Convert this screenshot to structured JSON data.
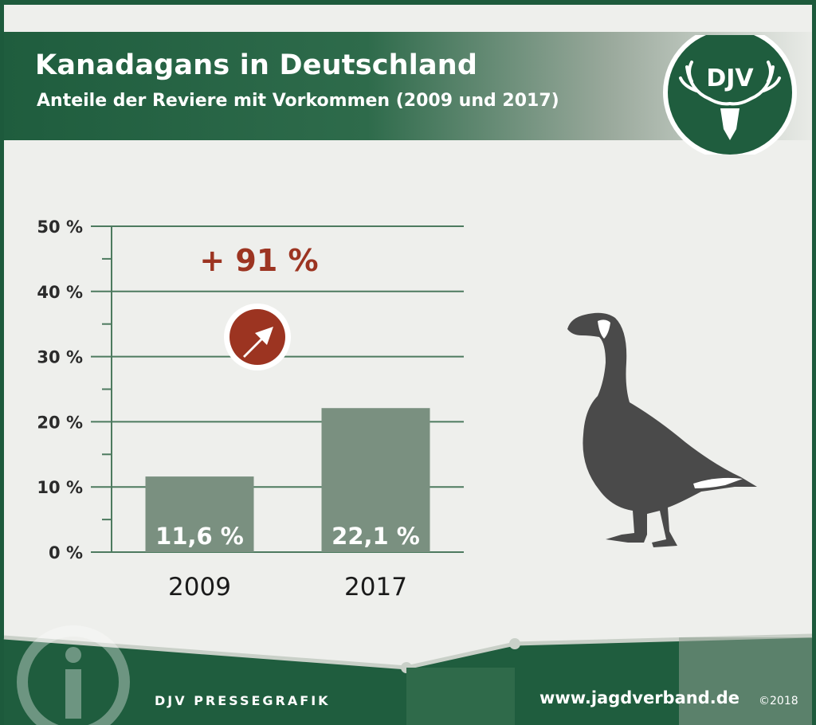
{
  "header": {
    "title": "Kanadagans in Deutschland",
    "subtitle": "Anteile der Reviere mit Vorkommen (2009 und 2017)"
  },
  "logo": {
    "text": "DJV",
    "icon": "stag-antlers-icon"
  },
  "chart_data": {
    "type": "bar",
    "categories": [
      "2009",
      "2017"
    ],
    "values": [
      11.6,
      22.1
    ],
    "value_labels": [
      "11,6 %",
      "22,1 %"
    ],
    "ylim": [
      0,
      50
    ],
    "y_ticks": [
      0,
      10,
      20,
      30,
      40,
      50
    ],
    "y_tick_labels": [
      "0 %",
      "10 %",
      "20 %",
      "30 %",
      "40 %",
      "50 %"
    ],
    "grid": true,
    "annotation": "+ 91 %",
    "annotation_icon": "up-right-arrow-icon",
    "colors": {
      "bar": "#7a9080",
      "axis": "#4d7a5f",
      "annotation": "#9c3421"
    }
  },
  "illustration": {
    "icon": "canada-goose-silhouette-icon"
  },
  "footer": {
    "credit": "DJV PRESSEGRAFIK",
    "url": "www.jagdverband.de",
    "copyright": "©2018",
    "icon": "info-icon"
  }
}
